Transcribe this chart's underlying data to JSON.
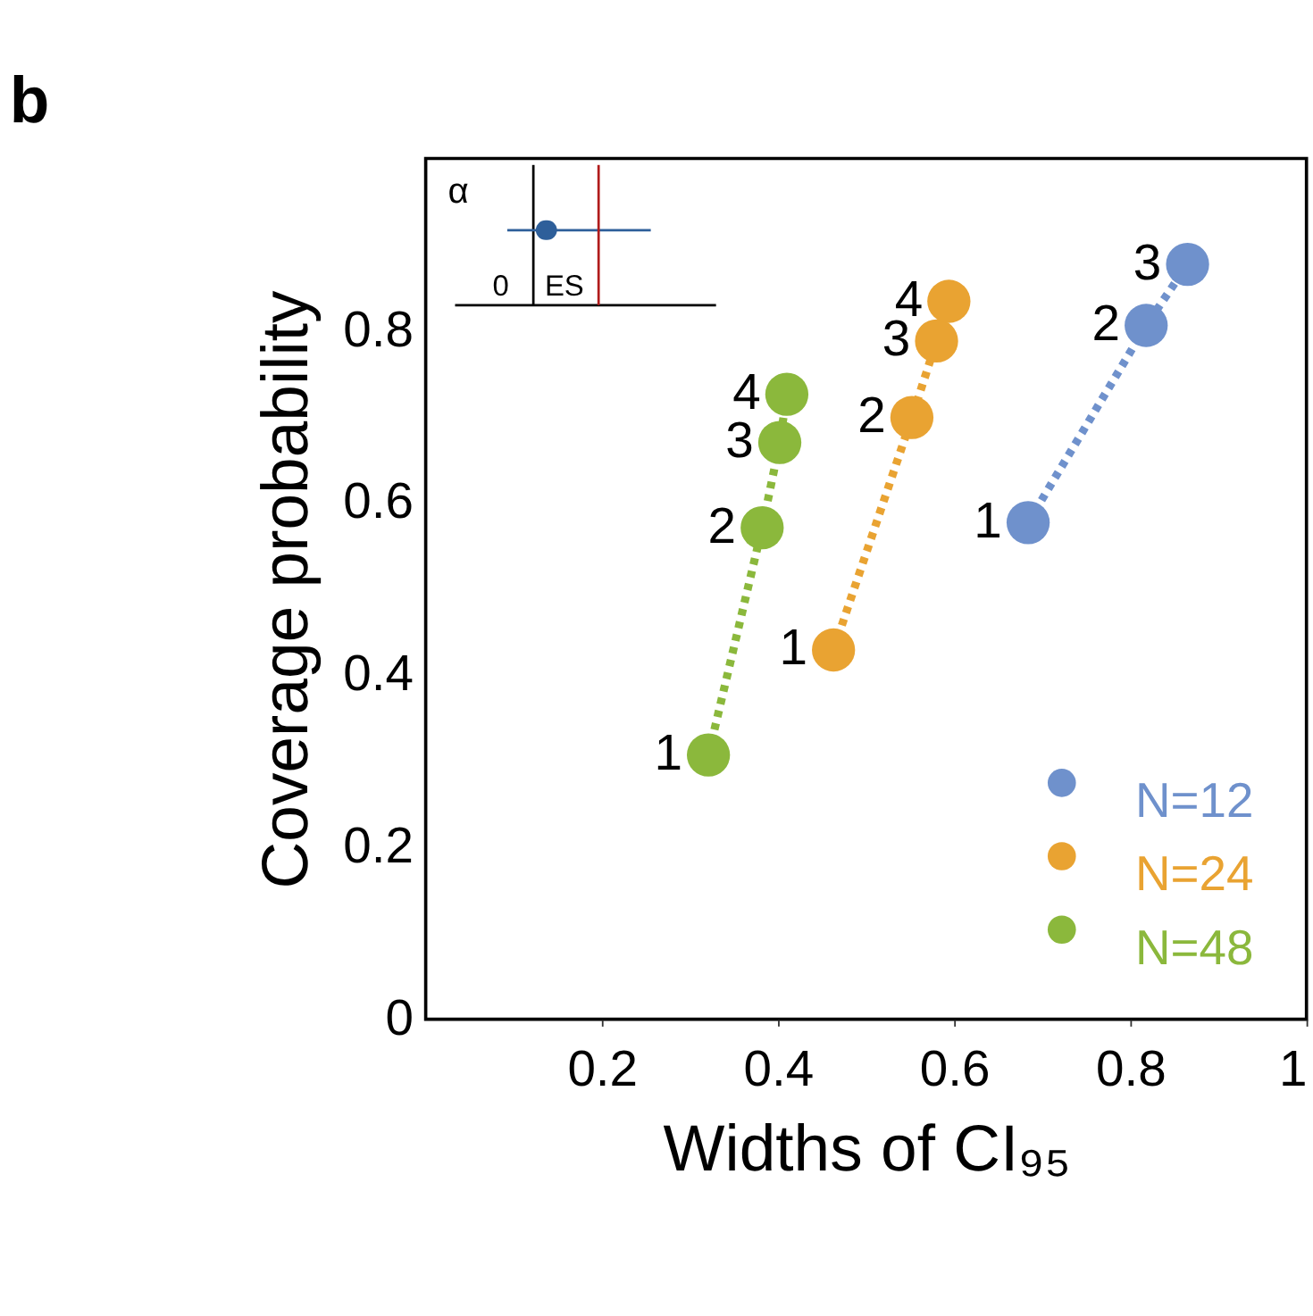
{
  "chart_data": {
    "type": "scatter",
    "title": "b",
    "xlabel": "Widths of CI₉₅",
    "ylabel": "Coverage probability",
    "xlim": [
      0,
      1
    ],
    "ylim": [
      0,
      1
    ],
    "xticks": [
      0.2,
      0.4,
      0.6,
      0.8,
      1
    ],
    "yticks": [
      0,
      0.2,
      0.4,
      0.6,
      0.8
    ],
    "grid": false,
    "legend": "bottom right",
    "marker": "circle",
    "line_style": "dotted",
    "series": [
      {
        "name": "N=12",
        "color": "#6f91cc",
        "x": [
          0.684,
          0.818,
          0.865
        ],
        "values": [
          0.577,
          0.806,
          0.877
        ]
      },
      {
        "name": "N=24",
        "color": "#e9a332",
        "x": [
          0.463,
          0.552,
          0.58,
          0.594
        ],
        "values": [
          0.429,
          0.699,
          0.788,
          0.834
        ]
      },
      {
        "name": "N=48",
        "color": "#8bb83c",
        "x": [
          0.321,
          0.382,
          0.402,
          0.41
        ],
        "values": [
          0.307,
          0.571,
          0.67,
          0.726
        ]
      }
    ],
    "annotations": [
      "α",
      "0",
      "ES",
      {
        "text": "1",
        "x": 0.684,
        "y": 0.577
      },
      {
        "text": "2",
        "x": 0.818,
        "y": 0.806
      },
      {
        "text": "3",
        "x": 0.865,
        "y": 0.877
      },
      {
        "text": "1",
        "x": 0.463,
        "y": 0.429
      },
      {
        "text": "2",
        "x": 0.552,
        "y": 0.699
      },
      {
        "text": "3",
        "x": 0.58,
        "y": 0.788
      },
      {
        "text": "4",
        "x": 0.594,
        "y": 0.834
      },
      {
        "text": "1",
        "x": 0.321,
        "y": 0.307
      },
      {
        "text": "2",
        "x": 0.382,
        "y": 0.571
      },
      {
        "text": "3",
        "x": 0.402,
        "y": 0.67
      },
      {
        "text": "4",
        "x": 0.41,
        "y": 0.726
      }
    ]
  }
}
